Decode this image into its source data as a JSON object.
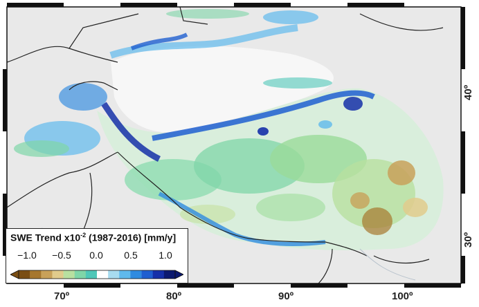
{
  "map": {
    "lon_labels": [
      "70º",
      "80º",
      "90º",
      "100º"
    ],
    "lat_labels": [
      "40º",
      "30º"
    ]
  },
  "legend": {
    "title_main": "SWE Trend x10",
    "title_exp": "-2",
    "title_rest": " (1987-2016) [mm/y]",
    "tick_labels": [
      "−1.0",
      "−0.5",
      "0.0",
      "0.5",
      "1.0"
    ],
    "colors": [
      "#7a4e14",
      "#a6772e",
      "#c8a15a",
      "#e0cb8c",
      "#b8e0a0",
      "#7fd6a8",
      "#4fc7b8",
      "#ffffff",
      "#a8dcf0",
      "#5fb9ec",
      "#2f8be0",
      "#1f5fd0",
      "#1530a8",
      "#0c1a70"
    ]
  }
}
